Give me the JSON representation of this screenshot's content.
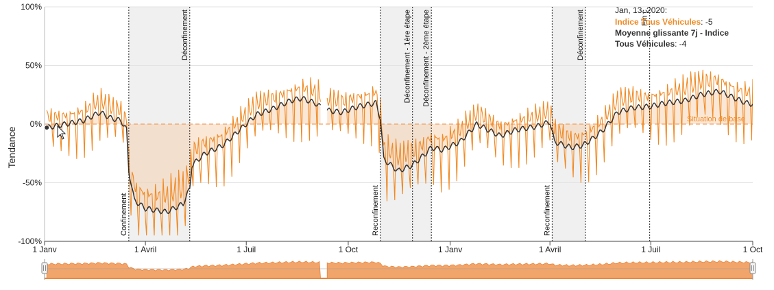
{
  "chart_data": {
    "type": "line",
    "ylabel": "Tendance",
    "ylim": [
      -100,
      100
    ],
    "y_ticks": [
      "100%",
      "50%",
      "0%",
      "-50%",
      "-100%"
    ],
    "x_ticks": [
      "1 Janv",
      "1 Avril",
      "1 Juil",
      "1 Oct",
      "1 Janv",
      "1 Avril",
      "1 Juil",
      "1 Oct"
    ],
    "x_tick_dates": [
      "2020-01-01",
      "2020-04-01",
      "2020-07-01",
      "2020-10-01",
      "2021-01-01",
      "2021-04-01",
      "2021-07-01",
      "2021-10-01"
    ],
    "baseline_label": "Situation de base",
    "series": [
      {
        "name": "Indice Tous Véhicules",
        "color": "#f08a24",
        "mean_points": [
          [
            "2020-01-03",
            -3
          ],
          [
            "2020-01-20",
            0
          ],
          [
            "2020-02-05",
            3
          ],
          [
            "2020-02-20",
            10
          ],
          [
            "2020-03-01",
            5
          ],
          [
            "2020-03-10",
            3
          ],
          [
            "2020-03-15",
            -5
          ],
          [
            "2020-03-17",
            -40
          ],
          [
            "2020-03-22",
            -65
          ],
          [
            "2020-04-01",
            -72
          ],
          [
            "2020-04-20",
            -75
          ],
          [
            "2020-05-05",
            -68
          ],
          [
            "2020-05-11",
            -55
          ],
          [
            "2020-05-13",
            -35
          ],
          [
            "2020-05-25",
            -25
          ],
          [
            "2020-06-10",
            -18
          ],
          [
            "2020-06-25",
            -5
          ],
          [
            "2020-07-10",
            8
          ],
          [
            "2020-07-25",
            13
          ],
          [
            "2020-08-10",
            20
          ],
          [
            "2020-08-20",
            22
          ],
          [
            "2020-09-01",
            18
          ],
          [
            "2020-09-10",
            12
          ],
          [
            "2020-09-25",
            10
          ],
          [
            "2020-10-10",
            15
          ],
          [
            "2020-10-26",
            18
          ],
          [
            "2020-10-30",
            5
          ],
          [
            "2020-11-02",
            -30
          ],
          [
            "2020-11-15",
            -40
          ],
          [
            "2020-11-28",
            -35
          ],
          [
            "2020-12-10",
            -25
          ],
          [
            "2020-12-15",
            -20
          ],
          [
            "2020-12-25",
            -22
          ],
          [
            "2021-01-10",
            -15
          ],
          [
            "2021-01-25",
            0
          ],
          [
            "2021-02-15",
            -10
          ],
          [
            "2021-03-01",
            -5
          ],
          [
            "2021-03-20",
            -2
          ],
          [
            "2021-04-01",
            2
          ],
          [
            "2021-04-05",
            -15
          ],
          [
            "2021-04-20",
            -20
          ],
          [
            "2021-05-01",
            -18
          ],
          [
            "2021-05-10",
            -12
          ],
          [
            "2021-05-19",
            -5
          ],
          [
            "2021-06-01",
            10
          ],
          [
            "2021-06-15",
            14
          ],
          [
            "2021-06-30",
            15
          ],
          [
            "2021-07-15",
            18
          ],
          [
            "2021-08-01",
            20
          ],
          [
            "2021-08-15",
            25
          ],
          [
            "2021-09-01",
            28
          ],
          [
            "2021-09-15",
            22
          ],
          [
            "2021-09-25",
            18
          ],
          [
            "2021-10-01",
            17
          ]
        ],
        "daily_swing": 18
      },
      {
        "name": "Moyenne glissante 7j - Indice Tous Véhicules",
        "color": "#333333",
        "points": [
          [
            "2020-01-03",
            -3
          ],
          [
            "2020-01-20",
            0
          ],
          [
            "2020-02-05",
            3
          ],
          [
            "2020-02-20",
            10
          ],
          [
            "2020-03-01",
            5
          ],
          [
            "2020-03-10",
            3
          ],
          [
            "2020-03-15",
            -5
          ],
          [
            "2020-03-17",
            -40
          ],
          [
            "2020-03-22",
            -65
          ],
          [
            "2020-04-01",
            -72
          ],
          [
            "2020-04-20",
            -75
          ],
          [
            "2020-05-05",
            -68
          ],
          [
            "2020-05-11",
            -55
          ],
          [
            "2020-05-13",
            -35
          ],
          [
            "2020-05-25",
            -25
          ],
          [
            "2020-06-10",
            -18
          ],
          [
            "2020-06-25",
            -5
          ],
          [
            "2020-07-10",
            8
          ],
          [
            "2020-07-25",
            13
          ],
          [
            "2020-08-10",
            20
          ],
          [
            "2020-08-20",
            22
          ],
          [
            "2020-09-01",
            18
          ],
          [
            "2020-09-10",
            12
          ],
          [
            "2020-09-25",
            10
          ],
          [
            "2020-10-10",
            15
          ],
          [
            "2020-10-26",
            18
          ],
          [
            "2020-10-30",
            5
          ],
          [
            "2020-11-02",
            -30
          ],
          [
            "2020-11-15",
            -40
          ],
          [
            "2020-11-28",
            -35
          ],
          [
            "2020-12-10",
            -25
          ],
          [
            "2020-12-15",
            -20
          ],
          [
            "2020-12-25",
            -22
          ],
          [
            "2021-01-10",
            -15
          ],
          [
            "2021-01-25",
            0
          ],
          [
            "2021-02-15",
            -10
          ],
          [
            "2021-03-01",
            -5
          ],
          [
            "2021-03-20",
            -2
          ],
          [
            "2021-04-01",
            2
          ],
          [
            "2021-04-05",
            -15
          ],
          [
            "2021-04-20",
            -20
          ],
          [
            "2021-05-01",
            -18
          ],
          [
            "2021-05-10",
            -12
          ],
          [
            "2021-05-19",
            -5
          ],
          [
            "2021-06-01",
            10
          ],
          [
            "2021-06-15",
            14
          ],
          [
            "2021-06-30",
            15
          ],
          [
            "2021-07-15",
            18
          ],
          [
            "2021-08-01",
            20
          ],
          [
            "2021-08-15",
            25
          ],
          [
            "2021-09-01",
            28
          ],
          [
            "2021-09-15",
            22
          ],
          [
            "2021-09-25",
            18
          ],
          [
            "2021-10-01",
            17
          ]
        ]
      }
    ],
    "gaps": [
      [
        "2020-09-06",
        "2020-09-12"
      ]
    ],
    "shaded_periods": [
      [
        "2020-03-17",
        "2020-05-11"
      ],
      [
        "2020-10-30",
        "2020-12-15"
      ],
      [
        "2021-04-03",
        "2021-05-03"
      ]
    ],
    "events": [
      {
        "date": "2020-03-17",
        "label": "Confinement",
        "pos": "bottom"
      },
      {
        "date": "2020-05-11",
        "label": "Déconfinement",
        "pos": "top"
      },
      {
        "date": "2020-10-30",
        "label": "Reconfinement",
        "pos": "bottom"
      },
      {
        "date": "2020-11-28",
        "label": "Déconfinement - 1ère étape",
        "pos": "top"
      },
      {
        "date": "2020-12-15",
        "label": "Déconfinement - 2ème étape",
        "pos": "top"
      },
      {
        "date": "2021-04-03",
        "label": "Reconfinement",
        "pos": "bottom"
      },
      {
        "date": "2021-05-03",
        "label": "Déconfinement",
        "pos": "top"
      },
      {
        "date": "2021-06-30",
        "label": "Fin c",
        "pos": "top"
      }
    ],
    "tooltip": {
      "date": "Jan, 13, 2020:",
      "series1_label": "Indice Tous Véhicules",
      "series1_value": ": -5",
      "series2_label_line1": "Moyenne glissante 7j - Indice",
      "series2_label_line2": "Tous Véhicules",
      "series2_value": ": -4",
      "hover_date": "2020-01-03",
      "hover_value": -3
    },
    "grid": true
  }
}
